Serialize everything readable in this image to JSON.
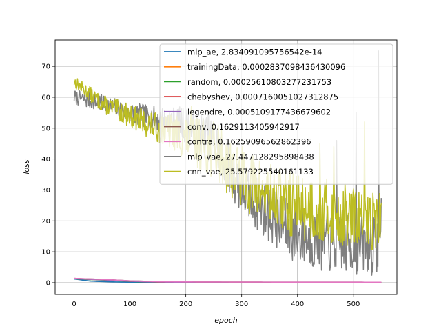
{
  "chart_data": {
    "type": "line",
    "xlabel": "epoch",
    "ylabel": "loss",
    "xlim": [
      -34,
      578
    ],
    "ylim": [
      -3.8,
      78.5
    ],
    "xticks": [
      0,
      100,
      200,
      300,
      400,
      500
    ],
    "yticks": [
      0,
      10,
      20,
      30,
      40,
      50,
      60,
      70
    ],
    "grid": true,
    "legend_position": "top-right",
    "series": [
      {
        "name": "mlp_ae, 2.834091095756542e-14",
        "color": "#1f77b4",
        "kind": "low",
        "points": [
          [
            0,
            1.2
          ],
          [
            30,
            0.5
          ],
          [
            60,
            0.3
          ],
          [
            100,
            0.15
          ],
          [
            150,
            0.05
          ],
          [
            200,
            0.01
          ],
          [
            300,
            0.0
          ],
          [
            400,
            0.0
          ],
          [
            550,
            0.0
          ]
        ]
      },
      {
        "name": "trainingData, 0.0002837098436430096",
        "color": "#ff7f0e",
        "kind": "low",
        "points": [
          [
            0,
            1.3
          ],
          [
            30,
            1.1
          ],
          [
            60,
            0.9
          ],
          [
            100,
            0.5
          ],
          [
            150,
            0.25
          ],
          [
            200,
            0.1
          ],
          [
            300,
            0.02
          ],
          [
            400,
            0.005
          ],
          [
            550,
            0.0
          ]
        ]
      },
      {
        "name": "random, 0.00025610803277231753",
        "color": "#2ca02c",
        "kind": "low",
        "points": [
          [
            0,
            1.3
          ],
          [
            30,
            1.0
          ],
          [
            60,
            0.8
          ],
          [
            100,
            0.4
          ],
          [
            150,
            0.2
          ],
          [
            200,
            0.08
          ],
          [
            300,
            0.02
          ],
          [
            400,
            0.005
          ],
          [
            550,
            0.0
          ]
        ]
      },
      {
        "name": "chebyshev, 0.0007160051027312875",
        "color": "#d62728",
        "kind": "low",
        "points": [
          [
            0,
            1.35
          ],
          [
            30,
            1.1
          ],
          [
            60,
            0.9
          ],
          [
            100,
            0.45
          ],
          [
            150,
            0.22
          ],
          [
            200,
            0.1
          ],
          [
            300,
            0.03
          ],
          [
            400,
            0.01
          ],
          [
            550,
            0.0
          ]
        ]
      },
      {
        "name": "legendre, 0.0005109177436679602",
        "color": "#9467bd",
        "kind": "low",
        "points": [
          [
            0,
            1.3
          ],
          [
            30,
            1.05
          ],
          [
            60,
            0.85
          ],
          [
            100,
            0.45
          ],
          [
            150,
            0.22
          ],
          [
            200,
            0.1
          ],
          [
            300,
            0.03
          ],
          [
            400,
            0.01
          ],
          [
            550,
            0.0
          ]
        ]
      },
      {
        "name": "conv, 0.1629113405942917",
        "color": "#8c564b",
        "kind": "low",
        "points": [
          [
            0,
            1.4
          ],
          [
            30,
            1.2
          ],
          [
            60,
            1.0
          ],
          [
            100,
            0.6
          ],
          [
            150,
            0.35
          ],
          [
            200,
            0.25
          ],
          [
            300,
            0.2
          ],
          [
            400,
            0.17
          ],
          [
            550,
            0.16
          ]
        ]
      },
      {
        "name": "contra, 0.16259096562862396",
        "color": "#e377c2",
        "kind": "low",
        "points": [
          [
            0,
            1.4
          ],
          [
            30,
            1.2
          ],
          [
            60,
            1.0
          ],
          [
            100,
            0.6
          ],
          [
            150,
            0.35
          ],
          [
            200,
            0.25
          ],
          [
            300,
            0.2
          ],
          [
            400,
            0.17
          ],
          [
            550,
            0.16
          ]
        ]
      },
      {
        "name": "mlp_vae, 27.447128295898438",
        "color": "#7f7f7f",
        "kind": "noisy",
        "base": [
          [
            0,
            60
          ],
          [
            50,
            58
          ],
          [
            100,
            55
          ],
          [
            150,
            53
          ],
          [
            200,
            51
          ],
          [
            250,
            46
          ],
          [
            300,
            30
          ],
          [
            350,
            22
          ],
          [
            400,
            15
          ],
          [
            450,
            13
          ],
          [
            500,
            12
          ],
          [
            550,
            12
          ]
        ],
        "noise": [
          [
            0,
            1.5
          ],
          [
            150,
            2.5
          ],
          [
            250,
            5
          ],
          [
            400,
            6
          ],
          [
            550,
            6
          ]
        ],
        "spikes": [
          [
            243,
            40
          ],
          [
            440,
            45
          ],
          [
            470,
            46
          ],
          [
            505,
            55
          ],
          [
            545,
            75
          ]
        ],
        "final": 27.4,
        "seed": 7
      },
      {
        "name": "cnn_vae, 25.579225540161133",
        "color": "#bcbd22",
        "kind": "noisy",
        "base": [
          [
            0,
            65
          ],
          [
            50,
            58
          ],
          [
            100,
            54
          ],
          [
            150,
            50
          ],
          [
            200,
            47
          ],
          [
            250,
            43
          ],
          [
            300,
            34
          ],
          [
            350,
            28
          ],
          [
            400,
            25
          ],
          [
            450,
            23
          ],
          [
            500,
            21
          ],
          [
            550,
            20
          ]
        ],
        "noise": [
          [
            0,
            1.2
          ],
          [
            150,
            3
          ],
          [
            250,
            6
          ],
          [
            400,
            7
          ],
          [
            550,
            6
          ]
        ],
        "spikes": [
          [
            210,
            57
          ],
          [
            258,
            51
          ],
          [
            440,
            45
          ],
          [
            465,
            44
          ],
          [
            520,
            52
          ]
        ],
        "final": 25.6,
        "seed": 13
      }
    ]
  }
}
